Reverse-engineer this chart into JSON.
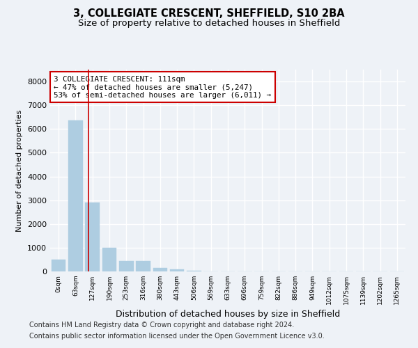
{
  "title_line1": "3, COLLEGIATE CRESCENT, SHEFFIELD, S10 2BA",
  "title_line2": "Size of property relative to detached houses in Sheffield",
  "xlabel": "Distribution of detached houses by size in Sheffield",
  "ylabel": "Number of detached properties",
  "categories": [
    "0sqm",
    "63sqm",
    "127sqm",
    "190sqm",
    "253sqm",
    "316sqm",
    "380sqm",
    "443sqm",
    "506sqm",
    "569sqm",
    "633sqm",
    "696sqm",
    "759sqm",
    "822sqm",
    "886sqm",
    "949sqm",
    "1012sqm",
    "1075sqm",
    "1139sqm",
    "1202sqm",
    "1265sqm"
  ],
  "values": [
    500,
    6350,
    2900,
    1000,
    450,
    430,
    150,
    75,
    25,
    5,
    0,
    0,
    0,
    0,
    0,
    0,
    0,
    0,
    0,
    0,
    0
  ],
  "bar_color": "#aecde1",
  "bar_edge_color": "#aecde1",
  "vline_x": 1.75,
  "vline_color": "#cc0000",
  "annotation_text": "3 COLLEGIATE CRESCENT: 111sqm\n← 47% of detached houses are smaller (5,247)\n53% of semi-detached houses are larger (6,011) →",
  "annotation_box_color": "#cc0000",
  "ylim": [
    0,
    8500
  ],
  "yticks": [
    0,
    1000,
    2000,
    3000,
    4000,
    5000,
    6000,
    7000,
    8000
  ],
  "background_color": "#eef2f7",
  "grid_color": "#ffffff",
  "footer_line1": "Contains HM Land Registry data © Crown copyright and database right 2024.",
  "footer_line2": "Contains public sector information licensed under the Open Government Licence v3.0.",
  "title_fontsize": 10.5,
  "subtitle_fontsize": 9.5,
  "annotation_fontsize": 7.8,
  "footer_fontsize": 7.0,
  "ylabel_fontsize": 8,
  "xlabel_fontsize": 9
}
